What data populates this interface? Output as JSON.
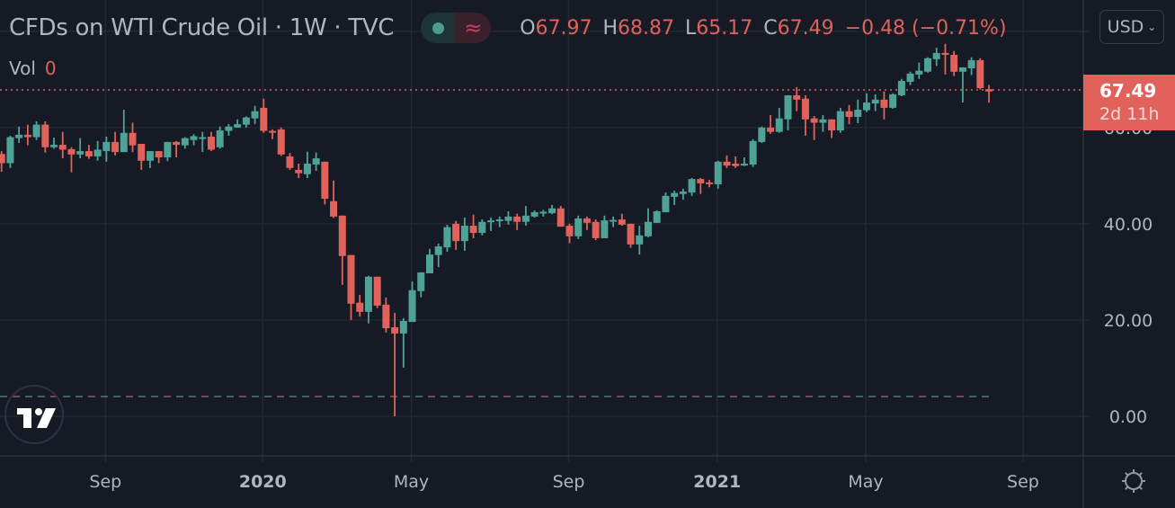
{
  "header": {
    "title": "CFDs on WTI Crude Oil · 1W · TVC",
    "ohlc": [
      {
        "key": "O",
        "value": "67.97"
      },
      {
        "key": "H",
        "value": "68.87"
      },
      {
        "key": "L",
        "value": "65.17"
      },
      {
        "key": "C",
        "value": "67.49"
      }
    ],
    "change": "−0.48 (−0.71%)",
    "market_status_icon": "dot-icon",
    "data_delay_icon": "approx-icon"
  },
  "volume": {
    "label": "Vol",
    "value": "0"
  },
  "currency": {
    "label": "USD"
  },
  "last_price": {
    "value": "67.49",
    "countdown": "2d 11h"
  },
  "colors": {
    "up": "#4fa396",
    "down": "#e0625a",
    "background": "#161a25",
    "grid": "#242833"
  },
  "chart_data": {
    "type": "candlestick",
    "interval": "1W",
    "ylim": [
      -7.85,
      86.5
    ],
    "grid": true,
    "y_ticks": [
      "0.00",
      "20.00",
      "40.00",
      "60.00"
    ],
    "y_tick_values": [
      0,
      20,
      40,
      60
    ],
    "x_ticks": [
      {
        "label": "Sep",
        "bar": 12
      },
      {
        "label": "2020",
        "bar": 30
      },
      {
        "label": "May",
        "bar": 47
      },
      {
        "label": "Sep",
        "bar": 65
      },
      {
        "label": "2021",
        "bar": 82
      },
      {
        "label": "May",
        "bar": 99
      },
      {
        "label": "Sep",
        "bar": 117
      }
    ],
    "candles_ohlc": [
      [
        54.5,
        55.1,
        50.8,
        52.6
      ],
      [
        52.6,
        58.3,
        51.6,
        58.0
      ],
      [
        57.8,
        60.2,
        56.8,
        58.5
      ],
      [
        58.5,
        60.6,
        56.3,
        58.0
      ],
      [
        58.0,
        61.3,
        57.4,
        60.6
      ],
      [
        60.6,
        61.3,
        54.8,
        55.9
      ],
      [
        55.9,
        57.9,
        55.6,
        56.4
      ],
      [
        56.4,
        59.1,
        53.6,
        55.4
      ],
      [
        55.5,
        55.9,
        50.7,
        54.4
      ],
      [
        54.4,
        57.8,
        53.6,
        55.1
      ],
      [
        55.1,
        56.4,
        53.5,
        54.0
      ],
      [
        54.0,
        57.2,
        53.1,
        55.4
      ],
      [
        55.1,
        58.1,
        52.9,
        57.0
      ],
      [
        57.0,
        59.1,
        54.2,
        54.9
      ],
      [
        54.9,
        63.7,
        54.9,
        58.9
      ],
      [
        58.9,
        61.0,
        54.9,
        56.3
      ],
      [
        56.6,
        56.6,
        51.2,
        53.1
      ],
      [
        53.1,
        55.1,
        51.6,
        55.1
      ],
      [
        55.1,
        55.1,
        52.6,
        53.8
      ],
      [
        53.8,
        57.0,
        53.0,
        57.0
      ],
      [
        57.0,
        57.2,
        53.8,
        56.4
      ],
      [
        56.3,
        58.0,
        55.6,
        57.8
      ],
      [
        57.4,
        58.6,
        56.3,
        58.2
      ],
      [
        57.8,
        59.1,
        54.9,
        58.0
      ],
      [
        58.1,
        59.1,
        55.1,
        55.4
      ],
      [
        55.9,
        60.2,
        55.6,
        59.4
      ],
      [
        59.3,
        60.7,
        58.3,
        60.2
      ],
      [
        60.0,
        61.7,
        60.0,
        60.7
      ],
      [
        60.6,
        62.3,
        60.0,
        62.1
      ],
      [
        61.9,
        64.5,
        60.7,
        63.4
      ],
      [
        64.1,
        66.0,
        58.9,
        59.3
      ],
      [
        59.3,
        59.6,
        57.6,
        59.0
      ],
      [
        59.6,
        60.0,
        54.1,
        54.4
      ],
      [
        54.0,
        54.7,
        51.2,
        51.6
      ],
      [
        51.2,
        52.5,
        49.5,
        50.5
      ],
      [
        50.3,
        55.0,
        49.5,
        52.5
      ],
      [
        52.3,
        54.8,
        51.0,
        53.6
      ],
      [
        52.9,
        52.9,
        44.0,
        45.2
      ],
      [
        44.7,
        49.0,
        41.2,
        41.5
      ],
      [
        41.7,
        41.7,
        27.3,
        33.3
      ],
      [
        33.5,
        33.5,
        20.0,
        23.4
      ],
      [
        23.6,
        25.2,
        20.7,
        21.7
      ],
      [
        21.7,
        29.2,
        19.3,
        29.0
      ],
      [
        29.0,
        29.0,
        22.5,
        23.0
      ],
      [
        23.2,
        24.7,
        17.4,
        18.3
      ],
      [
        18.5,
        21.5,
        0.0,
        17.2
      ],
      [
        17.2,
        20.4,
        10.1,
        19.8
      ],
      [
        19.6,
        28.0,
        19.6,
        26.2
      ],
      [
        26.0,
        29.9,
        24.7,
        29.9
      ],
      [
        29.7,
        34.8,
        29.7,
        33.6
      ],
      [
        33.5,
        35.9,
        31.0,
        35.3
      ],
      [
        35.1,
        39.8,
        34.2,
        39.3
      ],
      [
        40.0,
        40.6,
        34.6,
        36.4
      ],
      [
        36.4,
        41.3,
        34.4,
        39.6
      ],
      [
        39.6,
        41.9,
        37.0,
        38.1
      ],
      [
        38.1,
        40.9,
        37.6,
        40.4
      ],
      [
        40.4,
        41.3,
        38.5,
        40.7
      ],
      [
        40.6,
        41.5,
        39.3,
        40.9
      ],
      [
        40.6,
        42.6,
        39.8,
        41.5
      ],
      [
        41.5,
        42.1,
        38.7,
        40.4
      ],
      [
        40.4,
        43.7,
        39.6,
        41.7
      ],
      [
        41.5,
        42.8,
        41.3,
        42.4
      ],
      [
        42.2,
        42.9,
        41.5,
        42.5
      ],
      [
        42.2,
        43.9,
        42.0,
        43.2
      ],
      [
        43.2,
        43.7,
        39.4,
        39.4
      ],
      [
        39.6,
        40.0,
        36.0,
        37.4
      ],
      [
        37.4,
        41.7,
        36.8,
        41.1
      ],
      [
        41.1,
        41.5,
        38.7,
        40.2
      ],
      [
        40.4,
        40.9,
        36.6,
        37.0
      ],
      [
        37.0,
        41.7,
        37.0,
        40.7
      ],
      [
        40.6,
        41.5,
        39.3,
        40.8
      ],
      [
        40.9,
        42.1,
        39.6,
        39.8
      ],
      [
        40.0,
        40.0,
        35.0,
        35.7
      ],
      [
        35.7,
        39.6,
        33.6,
        37.6
      ],
      [
        37.4,
        43.2,
        37.2,
        40.4
      ],
      [
        40.2,
        42.8,
        40.2,
        42.6
      ],
      [
        42.4,
        46.5,
        42.4,
        45.8
      ],
      [
        45.6,
        46.9,
        43.9,
        46.4
      ],
      [
        46.2,
        47.3,
        45.0,
        46.7
      ],
      [
        46.5,
        49.5,
        45.8,
        49.3
      ],
      [
        49.3,
        49.5,
        46.2,
        48.4
      ],
      [
        48.6,
        49.1,
        47.6,
        48.4
      ],
      [
        48.2,
        53.1,
        47.3,
        52.9
      ],
      [
        52.9,
        54.2,
        51.6,
        52.1
      ],
      [
        52.5,
        54.0,
        51.6,
        52.0
      ],
      [
        52.1,
        53.8,
        52.0,
        52.5
      ],
      [
        52.3,
        57.6,
        51.8,
        57.2
      ],
      [
        57.0,
        60.2,
        56.8,
        60.0
      ],
      [
        60.0,
        62.6,
        58.7,
        59.1
      ],
      [
        59.1,
        64.1,
        58.9,
        61.9
      ],
      [
        61.7,
        66.7,
        59.4,
        66.7
      ],
      [
        66.7,
        68.4,
        63.4,
        65.8
      ],
      [
        66.0,
        66.7,
        58.3,
        61.7
      ],
      [
        61.9,
        62.4,
        57.4,
        61.0
      ],
      [
        61.0,
        62.6,
        59.1,
        61.7
      ],
      [
        61.7,
        61.7,
        57.8,
        59.4
      ],
      [
        59.4,
        64.1,
        58.9,
        63.4
      ],
      [
        63.4,
        64.7,
        60.7,
        62.2
      ],
      [
        62.2,
        65.8,
        60.9,
        63.7
      ],
      [
        63.6,
        67.1,
        63.2,
        65.2
      ],
      [
        65.0,
        66.9,
        63.4,
        65.8
      ],
      [
        65.8,
        67.5,
        61.7,
        64.1
      ],
      [
        64.1,
        67.1,
        63.9,
        66.9
      ],
      [
        66.7,
        70.1,
        66.5,
        69.7
      ],
      [
        69.5,
        71.6,
        68.8,
        71.2
      ],
      [
        71.0,
        73.5,
        70.1,
        71.8
      ],
      [
        71.6,
        74.6,
        71.4,
        74.4
      ],
      [
        74.2,
        76.6,
        72.8,
        75.5
      ],
      [
        75.5,
        77.4,
        71.0,
        75.1
      ],
      [
        75.1,
        75.9,
        70.7,
        71.6
      ],
      [
        71.6,
        72.5,
        65.2,
        72.5
      ],
      [
        72.3,
        74.6,
        70.9,
        74.0
      ],
      [
        74.0,
        74.4,
        67.9,
        68.2
      ],
      [
        67.97,
        68.87,
        65.17,
        67.49
      ]
    ]
  }
}
